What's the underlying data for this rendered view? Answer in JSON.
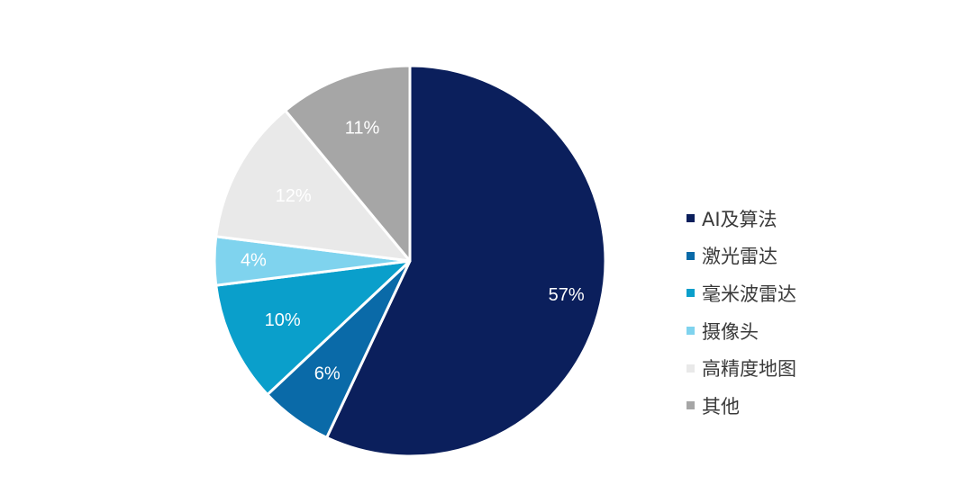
{
  "chart_data": {
    "type": "pie",
    "categories": [
      "AI及算法",
      "激光雷达",
      "毫米波雷达",
      "摄像头",
      "高精度地图",
      "其他"
    ],
    "values": [
      57,
      6,
      10,
      4,
      12,
      11
    ],
    "labels": [
      "57%",
      "6%",
      "10%",
      "4%",
      "12%",
      "11%"
    ],
    "colors": [
      "#0b1f5c",
      "#0a6aa8",
      "#0a9fcb",
      "#7fd3ee",
      "#e9e9e9",
      "#a6a6a6"
    ],
    "label_colors": [
      "#ffffff",
      "#ffffff",
      "#ffffff",
      "#ffffff",
      "#ffffff",
      "#ffffff"
    ],
    "start_angle_deg": 0,
    "direction": "clockwise",
    "legend_position": "right",
    "title": ""
  }
}
